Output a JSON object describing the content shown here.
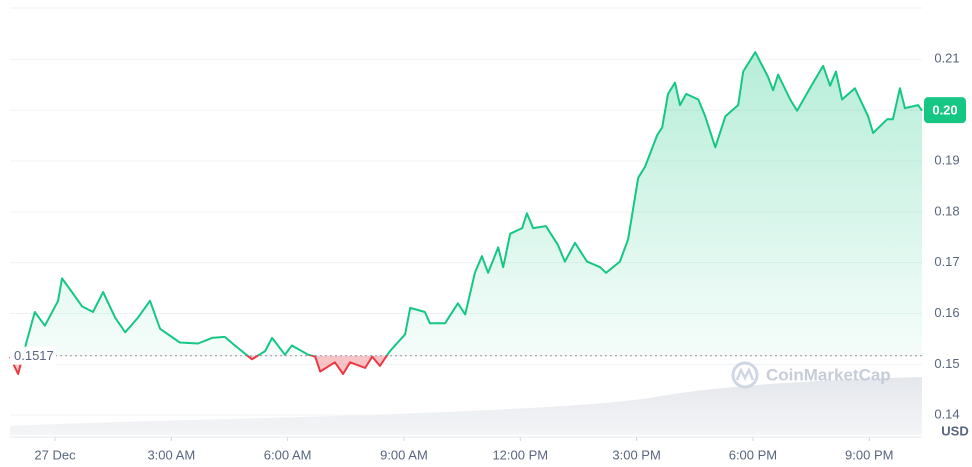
{
  "chart_data": {
    "type": "line",
    "baseline": 0.1517,
    "baseline_label": "0.1517",
    "current_value": 0.2,
    "current_label": "0.20",
    "currency": "USD",
    "watermark": "CoinMarketCap",
    "up_color": "#16c784",
    "down_color": "#ea3943",
    "grid": true,
    "xlim": [
      -1.16,
      22.36
    ],
    "ylim": [
      0.1361,
      0.2197
    ],
    "yticks": [
      {
        "value": 0.14,
        "label": "0.14"
      },
      {
        "value": 0.15,
        "label": "0.15"
      },
      {
        "value": 0.16,
        "label": "0.16"
      },
      {
        "value": 0.17,
        "label": "0.17"
      },
      {
        "value": 0.18,
        "label": "0.18"
      },
      {
        "value": 0.19,
        "label": "0.19"
      },
      {
        "value": 0.2,
        "label": "0.20"
      },
      {
        "value": 0.21,
        "label": "0.21"
      }
    ],
    "xticks": [
      {
        "value": 0,
        "label": "27 Dec"
      },
      {
        "value": 3,
        "label": "3:00 AM"
      },
      {
        "value": 6,
        "label": "6:00 AM"
      },
      {
        "value": 9,
        "label": "9:00 AM"
      },
      {
        "value": 12,
        "label": "12:00 PM"
      },
      {
        "value": 15,
        "label": "3:00 PM"
      },
      {
        "value": 18,
        "label": "6:00 PM"
      },
      {
        "value": 21,
        "label": "9:00 PM"
      }
    ],
    "x": [
      -1.16,
      -0.95,
      -0.72,
      -0.52,
      -0.26,
      0.08,
      0.18,
      0.44,
      0.7,
      0.98,
      1.24,
      1.55,
      1.81,
      2.14,
      2.45,
      2.71,
      3.22,
      3.69,
      4.05,
      4.38,
      4.64,
      5.08,
      5.42,
      5.6,
      5.93,
      6.11,
      6.53,
      6.71,
      6.84,
      7.22,
      7.43,
      7.61,
      8.0,
      8.18,
      8.38,
      8.64,
      9.03,
      9.16,
      9.54,
      9.67,
      10.06,
      10.39,
      10.58,
      10.83,
      11.01,
      11.17,
      11.43,
      11.56,
      11.74,
      12.05,
      12.17,
      12.33,
      12.66,
      12.97,
      13.15,
      13.41,
      13.72,
      14.06,
      14.21,
      14.57,
      14.78,
      15.04,
      15.22,
      15.53,
      15.66,
      15.81,
      15.99,
      16.12,
      16.28,
      16.59,
      16.77,
      17.03,
      17.29,
      17.62,
      17.75,
      18.06,
      18.39,
      18.52,
      18.65,
      18.96,
      19.14,
      19.47,
      19.81,
      19.99,
      20.14,
      20.3,
      20.63,
      20.97,
      21.1,
      21.46,
      21.61,
      21.79,
      21.92,
      22.26,
      22.36
    ],
    "values": [
      0.1515,
      0.1481,
      0.1548,
      0.1603,
      0.1576,
      0.1625,
      0.1669,
      0.1642,
      0.1614,
      0.1603,
      0.1642,
      0.1592,
      0.1563,
      0.1592,
      0.1625,
      0.157,
      0.1543,
      0.1541,
      0.1552,
      0.1554,
      0.1537,
      0.151,
      0.1526,
      0.1552,
      0.1519,
      0.1537,
      0.1519,
      0.1515,
      0.1486,
      0.1504,
      0.1481,
      0.1504,
      0.1493,
      0.1515,
      0.1497,
      0.1526,
      0.1559,
      0.1611,
      0.1603,
      0.1581,
      0.1581,
      0.162,
      0.1598,
      0.168,
      0.1713,
      0.168,
      0.173,
      0.1691,
      0.1757,
      0.1768,
      0.1797,
      0.1768,
      0.1772,
      0.1735,
      0.1702,
      0.1739,
      0.1702,
      0.1691,
      0.168,
      0.1702,
      0.1746,
      0.1867,
      0.1889,
      0.1951,
      0.1966,
      0.2032,
      0.2054,
      0.201,
      0.2032,
      0.2021,
      0.1988,
      0.1927,
      0.1988,
      0.201,
      0.2076,
      0.2114,
      0.2065,
      0.2039,
      0.207,
      0.2021,
      0.1999,
      0.2043,
      0.2087,
      0.2048,
      0.2076,
      0.2021,
      0.2043,
      0.1988,
      0.1955,
      0.1982,
      0.1982,
      0.2043,
      0.2004,
      0.201,
      0.1999
    ]
  }
}
